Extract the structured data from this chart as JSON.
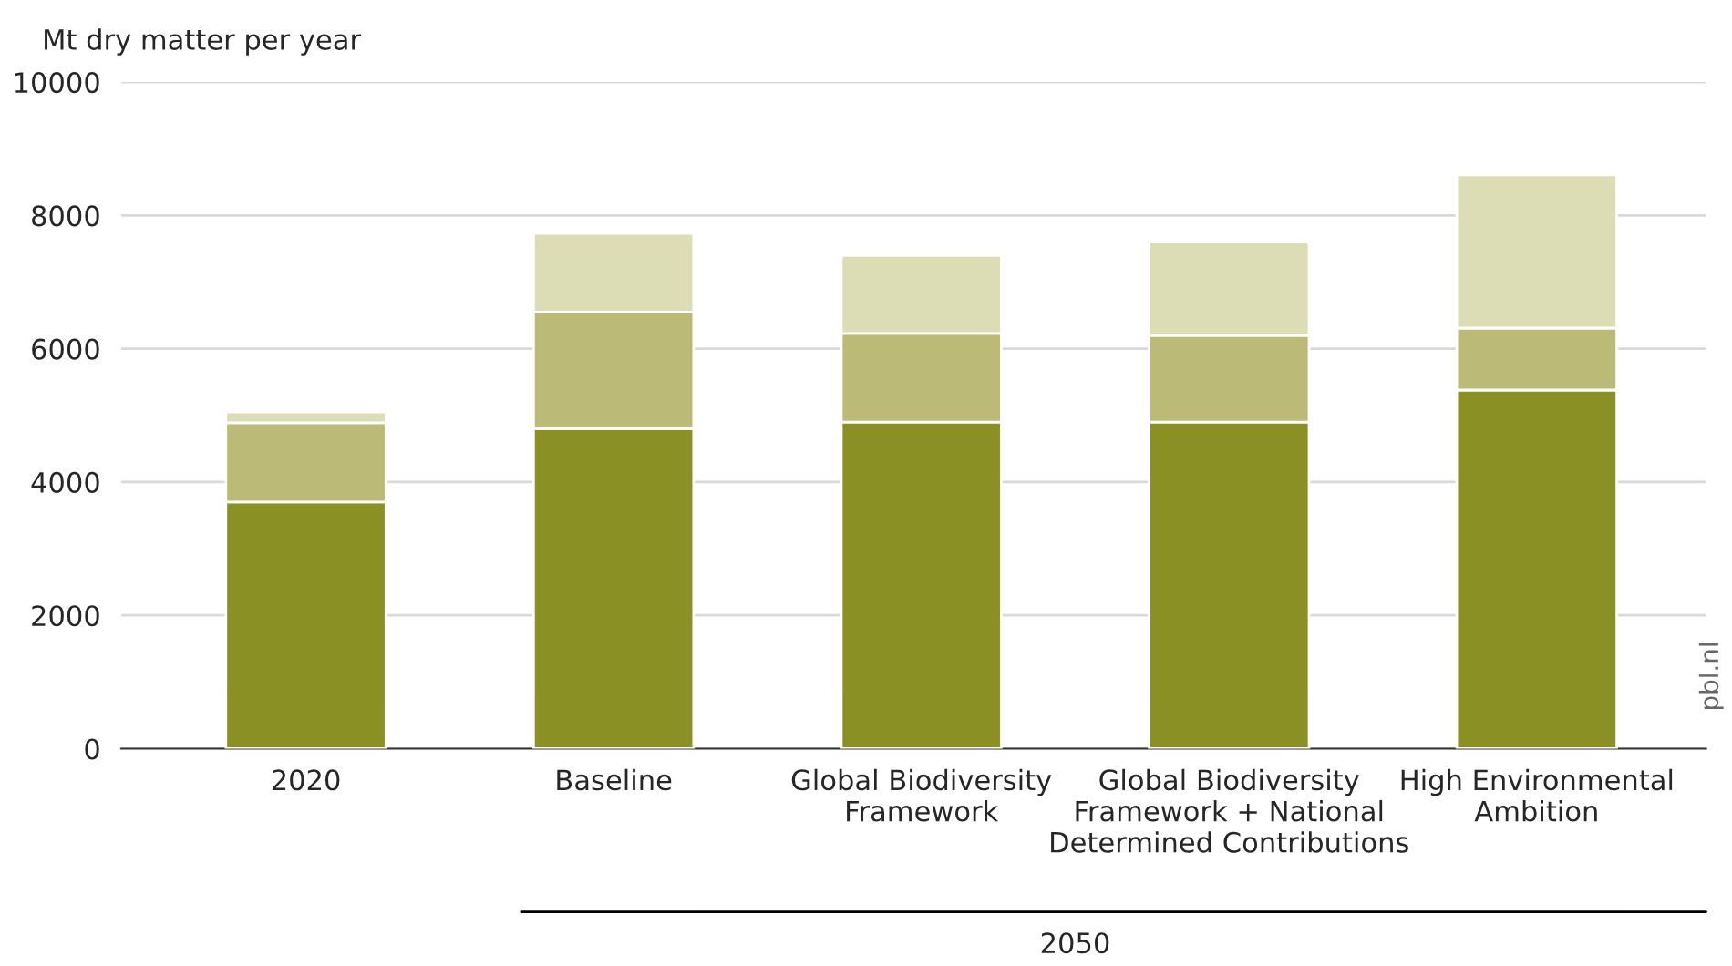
{
  "chart_data": {
    "type": "bar",
    "stacked": true,
    "ylabel": "Mt dry matter per year",
    "categories": [
      "2020",
      "Baseline",
      "Global Biodiversity\nFramework",
      "Global Biodiversity\nFramework + National\nDetermined Contributions",
      "High Environmental\nAmbition"
    ],
    "series": [
      {
        "color": "#8b9024",
        "values": [
          3700,
          4800,
          4900,
          4900,
          5380
        ]
      },
      {
        "color": "#bbbb77",
        "values": [
          1190,
          1750,
          1330,
          1300,
          930
        ]
      },
      {
        "color": "#dcdcb5",
        "values": [
          160,
          1180,
          1170,
          1400,
          2300
        ]
      }
    ],
    "ylim": [
      0,
      10000
    ],
    "yticks": [
      0,
      2000,
      4000,
      6000,
      8000,
      10000
    ],
    "grid": "y",
    "legend": false,
    "annotations": [
      "2050",
      "pbl.nl"
    ]
  }
}
